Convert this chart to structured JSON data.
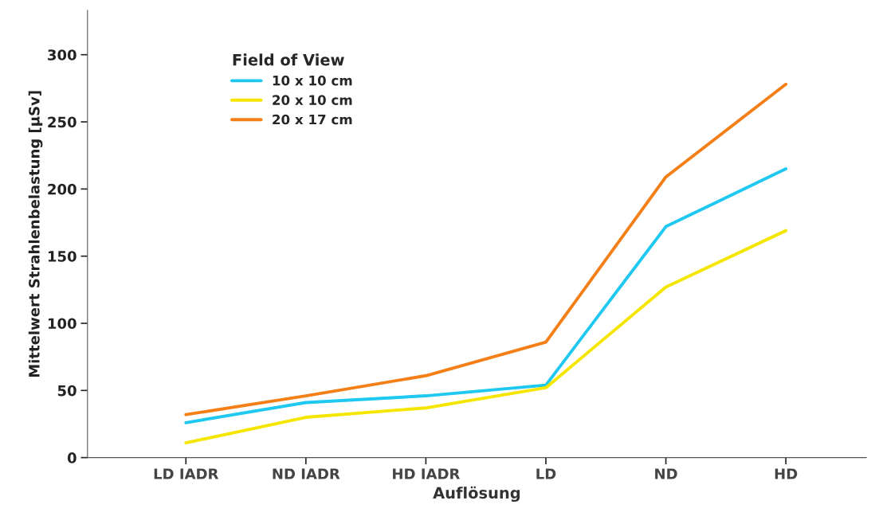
{
  "chart_data": {
    "type": "line",
    "xlabel": "Auflösung",
    "ylabel": "Mittelwert Strahlenbelastung [µSv]",
    "legend_title": "Field of View",
    "legend": "top left",
    "grid": false,
    "marker": "none",
    "line_style": "solid",
    "categories": [
      "LD IADR",
      "ND IADR",
      "HD IADR",
      "LD",
      "ND",
      "HD"
    ],
    "ylim": [
      0,
      333
    ],
    "yticks": [
      0,
      50,
      100,
      150,
      200,
      250,
      300
    ],
    "series": [
      {
        "name": "10 x 10 cm",
        "color": "#1ec8f0",
        "values": [
          26,
          41,
          46,
          54,
          172,
          215
        ]
      },
      {
        "name": "20 x 10 cm",
        "color": "#f5e600",
        "values": [
          11,
          30,
          37,
          52,
          127,
          169
        ]
      },
      {
        "name": "20 x 17 cm",
        "color": "#f57f17",
        "values": [
          32,
          46,
          61,
          86,
          209,
          278
        ]
      }
    ]
  }
}
